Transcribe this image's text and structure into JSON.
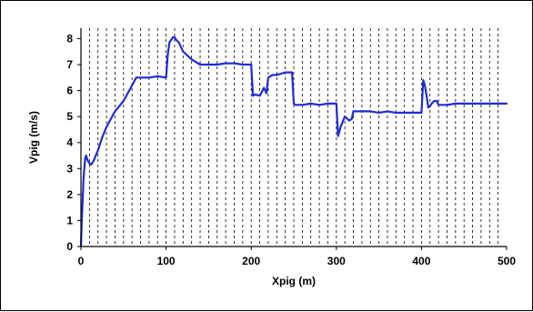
{
  "chart_data": {
    "type": "line",
    "title": "",
    "xlabel": "Xpig (m)",
    "ylabel": "Vpig (m/s)",
    "xlim": [
      0,
      500
    ],
    "ylim": [
      0,
      8.4
    ],
    "x_ticks": [
      0,
      100,
      200,
      300,
      400,
      500
    ],
    "y_ticks": [
      0,
      1,
      2,
      3,
      4,
      5,
      6,
      7,
      8
    ],
    "grid": "vertical dashed lines every 10 m",
    "series": [
      {
        "color": "#1f2bd8",
        "x": [
          0,
          1,
          2,
          3,
          4,
          5,
          6,
          8,
          10,
          12,
          15,
          20,
          25,
          30,
          40,
          50,
          60,
          65,
          70,
          80,
          90,
          100,
          102,
          104,
          106,
          108,
          110,
          112,
          115,
          120,
          130,
          140,
          150,
          160,
          170,
          175,
          180,
          190,
          200,
          202,
          205,
          210,
          215,
          218,
          220,
          225,
          230,
          235,
          240,
          245,
          248,
          250,
          252,
          255,
          260,
          270,
          280,
          290,
          300,
          302,
          305,
          310,
          315,
          318,
          320,
          330,
          340,
          350,
          360,
          370,
          380,
          390,
          400,
          402,
          404,
          406,
          408,
          410,
          412,
          415,
          418,
          420,
          425,
          430,
          440,
          450,
          460,
          470,
          480,
          490,
          500
        ],
        "y": [
          0,
          1.0,
          1.8,
          2.6,
          3.0,
          3.4,
          3.5,
          3.3,
          3.2,
          3.15,
          3.3,
          3.7,
          4.2,
          4.6,
          5.2,
          5.6,
          6.2,
          6.5,
          6.5,
          6.5,
          6.55,
          6.5,
          7.4,
          7.85,
          7.95,
          8.05,
          8.05,
          7.95,
          7.85,
          7.5,
          7.2,
          7.0,
          7.0,
          7.0,
          7.05,
          7.05,
          7.05,
          7.0,
          7.0,
          5.8,
          5.85,
          5.8,
          6.1,
          5.9,
          6.5,
          6.6,
          6.6,
          6.65,
          6.7,
          6.7,
          6.7,
          5.5,
          5.45,
          5.45,
          5.45,
          5.5,
          5.45,
          5.5,
          5.5,
          4.25,
          4.6,
          5.0,
          4.85,
          4.9,
          5.2,
          5.2,
          5.2,
          5.15,
          5.2,
          5.15,
          5.15,
          5.15,
          5.15,
          6.4,
          6.2,
          5.8,
          5.35,
          5.4,
          5.5,
          5.6,
          5.6,
          5.45,
          5.45,
          5.45,
          5.5,
          5.5,
          5.5,
          5.5,
          5.5,
          5.5,
          5.5
        ]
      }
    ]
  }
}
